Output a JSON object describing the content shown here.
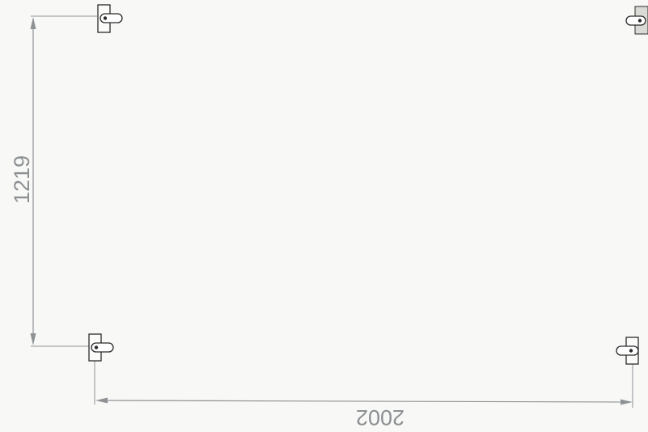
{
  "dimensions": {
    "height_label": "1219",
    "width_label": "2002"
  },
  "brackets": [
    {
      "name": "mount-bracket-top-left-icon"
    },
    {
      "name": "mount-bracket-top-right-icon"
    },
    {
      "name": "mount-bracket-bottom-left-icon"
    },
    {
      "name": "mount-bracket-bottom-right-icon"
    }
  ],
  "colors": {
    "dimension": "#8f9295",
    "outline": "#2b2b2b",
    "background": "#f8f8f6"
  }
}
